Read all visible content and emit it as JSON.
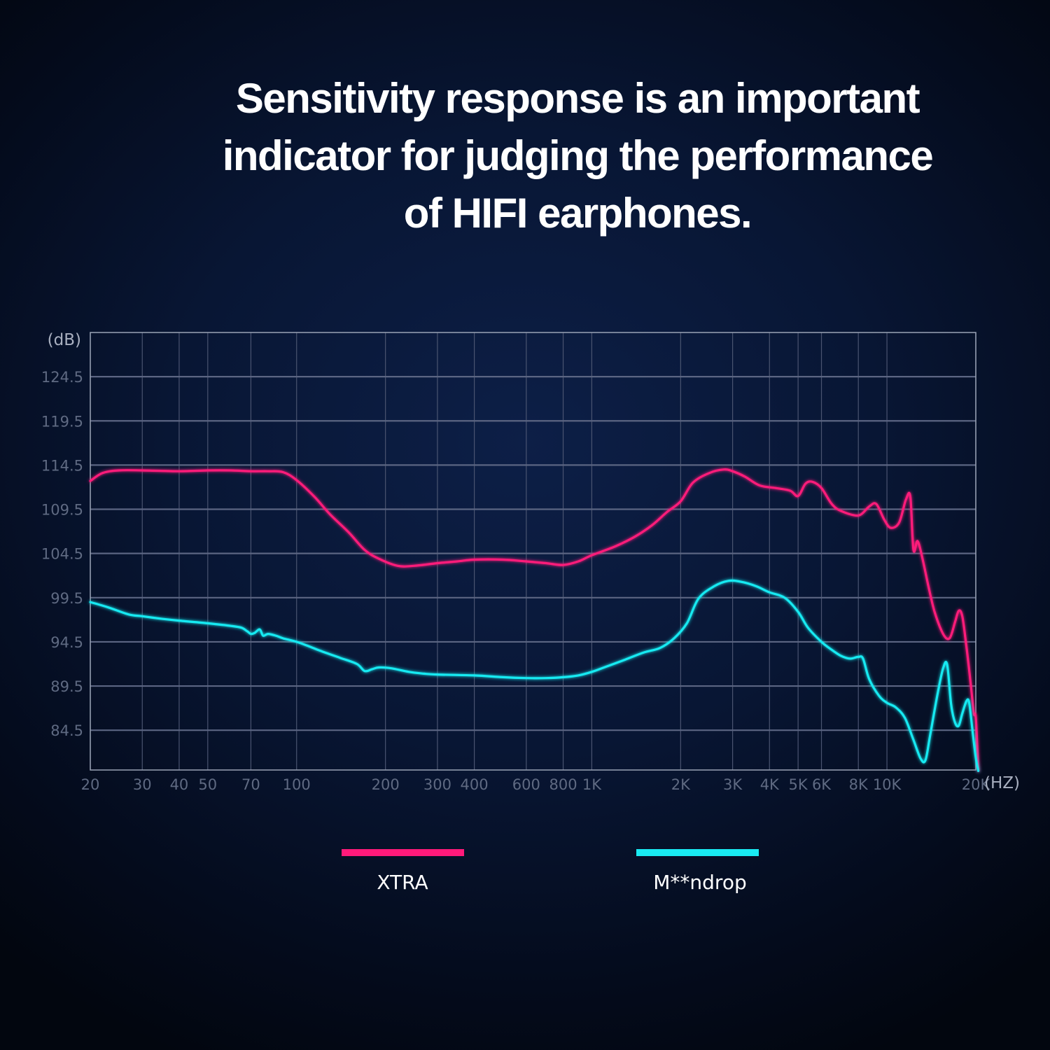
{
  "title_lines": [
    "Sensitivity response is an important",
    "indicator for judging the performance",
    "of HIFI earphones."
  ],
  "chart_data": {
    "type": "line",
    "title": "Sensitivity response is an important indicator for judging the performance of HIFI earphones.",
    "xlabel": "(HZ)",
    "ylabel": "(dB)",
    "xscale": "log",
    "xlim": [
      20,
      20000
    ],
    "ylim": [
      80,
      129.5
    ],
    "grid": true,
    "x_ticks": [
      {
        "value": 20,
        "label": "20"
      },
      {
        "value": 30,
        "label": "30"
      },
      {
        "value": 40,
        "label": "40"
      },
      {
        "value": 50,
        "label": "50"
      },
      {
        "value": 70,
        "label": "70"
      },
      {
        "value": 100,
        "label": "100"
      },
      {
        "value": 200,
        "label": "200"
      },
      {
        "value": 300,
        "label": "300"
      },
      {
        "value": 400,
        "label": "400"
      },
      {
        "value": 600,
        "label": "600"
      },
      {
        "value": 800,
        "label": "800"
      },
      {
        "value": 1000,
        "label": "1K"
      },
      {
        "value": 2000,
        "label": "2K"
      },
      {
        "value": 3000,
        "label": "3K"
      },
      {
        "value": 4000,
        "label": "4K"
      },
      {
        "value": 5000,
        "label": "5K"
      },
      {
        "value": 6000,
        "label": "6K"
      },
      {
        "value": 8000,
        "label": "8K"
      },
      {
        "value": 10000,
        "label": "10K"
      },
      {
        "value": 20000,
        "label": "20K"
      }
    ],
    "y_ticks": [
      {
        "value": 124.5,
        "label": "124.5"
      },
      {
        "value": 119.5,
        "label": "119.5"
      },
      {
        "value": 114.5,
        "label": "114.5"
      },
      {
        "value": 109.5,
        "label": "109.5"
      },
      {
        "value": 104.5,
        "label": "104.5"
      },
      {
        "value": 99.5,
        "label": "99.5"
      },
      {
        "value": 94.5,
        "label": "94.5"
      },
      {
        "value": 89.5,
        "label": "89.5"
      },
      {
        "value": 84.5,
        "label": "84.5"
      }
    ],
    "series": [
      {
        "name": "XTRA",
        "color": "#ff1a7a",
        "points": [
          [
            20,
            112.7
          ],
          [
            22,
            113.6
          ],
          [
            25,
            113.9
          ],
          [
            30,
            113.9
          ],
          [
            40,
            113.8
          ],
          [
            50,
            113.9
          ],
          [
            60,
            113.9
          ],
          [
            70,
            113.8
          ],
          [
            80,
            113.8
          ],
          [
            90,
            113.7
          ],
          [
            100,
            112.8
          ],
          [
            115,
            110.9
          ],
          [
            130,
            108.9
          ],
          [
            150,
            106.9
          ],
          [
            170,
            104.9
          ],
          [
            190,
            103.9
          ],
          [
            220,
            103.1
          ],
          [
            250,
            103.1
          ],
          [
            300,
            103.4
          ],
          [
            350,
            103.6
          ],
          [
            400,
            103.8
          ],
          [
            500,
            103.8
          ],
          [
            600,
            103.6
          ],
          [
            700,
            103.4
          ],
          [
            800,
            103.2
          ],
          [
            900,
            103.6
          ],
          [
            1000,
            104.3
          ],
          [
            1200,
            105.3
          ],
          [
            1400,
            106.4
          ],
          [
            1600,
            107.7
          ],
          [
            1800,
            109.2
          ],
          [
            2000,
            110.4
          ],
          [
            2200,
            112.5
          ],
          [
            2500,
            113.6
          ],
          [
            2800,
            114.0
          ],
          [
            3000,
            113.8
          ],
          [
            3300,
            113.2
          ],
          [
            3700,
            112.2
          ],
          [
            4200,
            111.9
          ],
          [
            4700,
            111.6
          ],
          [
            5000,
            111.0
          ],
          [
            5300,
            112.4
          ],
          [
            5600,
            112.6
          ],
          [
            6000,
            111.9
          ],
          [
            6500,
            110.1
          ],
          [
            7000,
            109.3
          ],
          [
            8000,
            108.8
          ],
          [
            8700,
            109.8
          ],
          [
            9200,
            110.1
          ],
          [
            9800,
            108.3
          ],
          [
            10300,
            107.4
          ],
          [
            11000,
            108.0
          ],
          [
            11600,
            110.6
          ],
          [
            12000,
            110.9
          ],
          [
            12300,
            104.9
          ],
          [
            12700,
            105.9
          ],
          [
            13200,
            103.9
          ],
          [
            13800,
            100.9
          ],
          [
            14500,
            97.9
          ],
          [
            15500,
            95.4
          ],
          [
            16300,
            94.9
          ],
          [
            17000,
            96.7
          ],
          [
            17500,
            98.0
          ],
          [
            18000,
            97.4
          ],
          [
            18600,
            93.9
          ],
          [
            19200,
            89.9
          ],
          [
            19700,
            86.4
          ],
          [
            20000,
            85.9
          ],
          [
            20400,
            79.9
          ]
        ]
      },
      {
        "name": "M**ndrop",
        "color": "#19eaf2",
        "points": [
          [
            20,
            99.0
          ],
          [
            23,
            98.4
          ],
          [
            27,
            97.6
          ],
          [
            30,
            97.4
          ],
          [
            35,
            97.1
          ],
          [
            40,
            96.9
          ],
          [
            50,
            96.6
          ],
          [
            60,
            96.3
          ],
          [
            65,
            96.1
          ],
          [
            68,
            95.7
          ],
          [
            70,
            95.4
          ],
          [
            72,
            95.5
          ],
          [
            75,
            95.9
          ],
          [
            77,
            95.2
          ],
          [
            80,
            95.4
          ],
          [
            85,
            95.2
          ],
          [
            90,
            94.9
          ],
          [
            100,
            94.5
          ],
          [
            110,
            94.0
          ],
          [
            120,
            93.5
          ],
          [
            140,
            92.7
          ],
          [
            160,
            92.0
          ],
          [
            170,
            91.2
          ],
          [
            180,
            91.4
          ],
          [
            190,
            91.6
          ],
          [
            210,
            91.5
          ],
          [
            240,
            91.1
          ],
          [
            270,
            90.9
          ],
          [
            300,
            90.8
          ],
          [
            400,
            90.7
          ],
          [
            500,
            90.5
          ],
          [
            600,
            90.4
          ],
          [
            700,
            90.4
          ],
          [
            800,
            90.5
          ],
          [
            900,
            90.7
          ],
          [
            1000,
            91.1
          ],
          [
            1100,
            91.6
          ],
          [
            1300,
            92.5
          ],
          [
            1500,
            93.3
          ],
          [
            1700,
            93.8
          ],
          [
            1900,
            94.9
          ],
          [
            2100,
            96.6
          ],
          [
            2300,
            99.4
          ],
          [
            2600,
            100.8
          ],
          [
            2900,
            101.4
          ],
          [
            3200,
            101.3
          ],
          [
            3600,
            100.8
          ],
          [
            4000,
            100.1
          ],
          [
            4500,
            99.5
          ],
          [
            5000,
            97.9
          ],
          [
            5400,
            96.1
          ],
          [
            6000,
            94.5
          ],
          [
            6500,
            93.6
          ],
          [
            7000,
            92.9
          ],
          [
            7500,
            92.6
          ],
          [
            8000,
            92.8
          ],
          [
            8300,
            92.6
          ],
          [
            8700,
            90.3
          ],
          [
            9400,
            88.4
          ],
          [
            10000,
            87.6
          ],
          [
            10700,
            87.1
          ],
          [
            11500,
            85.9
          ],
          [
            12300,
            83.4
          ],
          [
            13000,
            81.3
          ],
          [
            13500,
            81.1
          ],
          [
            14000,
            83.9
          ],
          [
            14800,
            88.4
          ],
          [
            15500,
            91.5
          ],
          [
            16000,
            91.9
          ],
          [
            16500,
            87.4
          ],
          [
            17000,
            85.4
          ],
          [
            17500,
            85.0
          ],
          [
            18000,
            86.4
          ],
          [
            18600,
            87.8
          ],
          [
            19000,
            87.6
          ],
          [
            19500,
            84.4
          ],
          [
            20000,
            81.4
          ],
          [
            20400,
            79.9
          ]
        ]
      }
    ]
  }
}
